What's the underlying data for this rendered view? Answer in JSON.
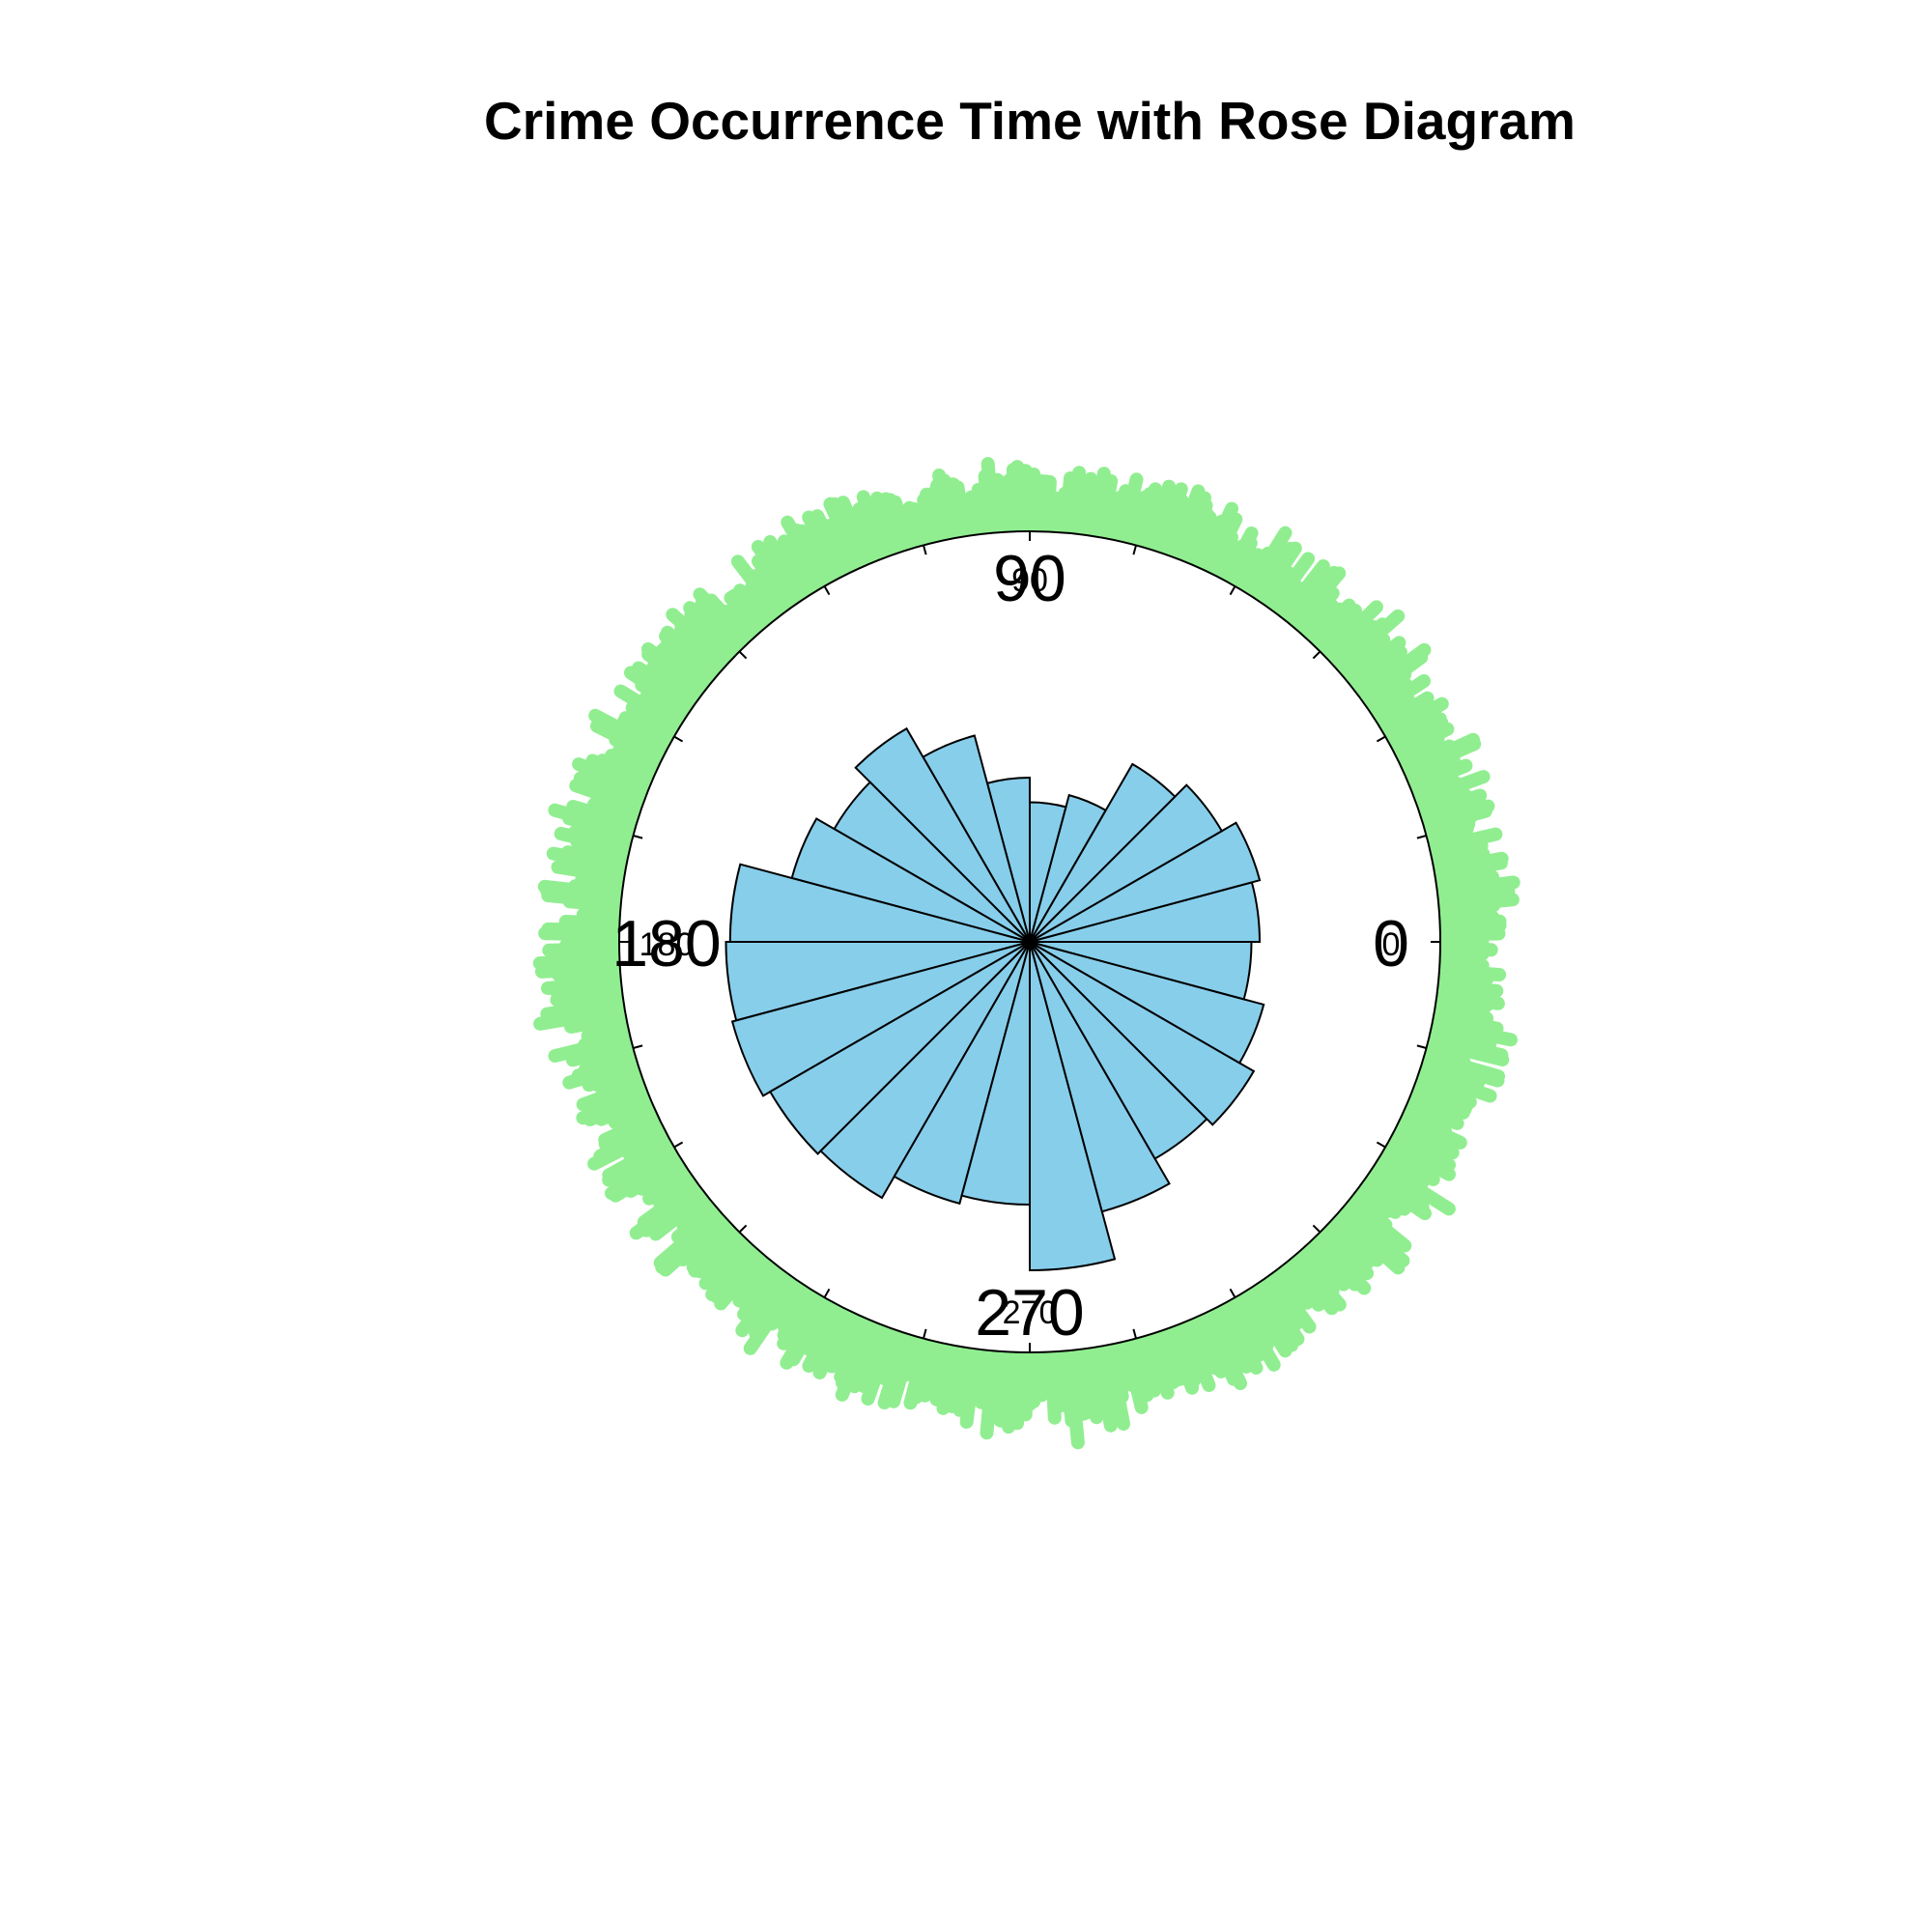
{
  "chart_data": {
    "type": "rose",
    "title": "Crime Occurrence Time with Rose Diagram",
    "angle_unit": "degrees",
    "angle_labels": [
      "0",
      "90",
      "180",
      "270"
    ],
    "angle_labels_small": [
      "0",
      "90",
      "180",
      "270"
    ],
    "tick_angles": [
      0,
      15,
      30,
      45,
      60,
      75,
      90,
      105,
      120,
      135,
      150,
      165,
      180,
      195,
      210,
      225,
      240,
      255,
      270,
      285,
      300,
      315,
      330,
      345
    ],
    "bins": {
      "start_angles": [
        0,
        15,
        30,
        45,
        60,
        75,
        90,
        105,
        120,
        135,
        150,
        165,
        180,
        195,
        210,
        225,
        240,
        255,
        270,
        285,
        300,
        315,
        330,
        345
      ],
      "width": 15,
      "relative_radius": [
        0.56,
        0.58,
        0.54,
        0.5,
        0.37,
        0.34,
        0.4,
        0.52,
        0.6,
        0.55,
        0.6,
        0.73,
        0.74,
        0.75,
        0.73,
        0.72,
        0.66,
        0.64,
        0.8,
        0.68,
        0.61,
        0.63,
        0.59,
        0.54
      ]
    },
    "raw_points": {
      "note_free": true,
      "count_per_degree_weight": [
        1.0
      ]
    },
    "colors": {
      "petal_fill": "#87ceeb",
      "petal_stroke": "#000000",
      "points": "#90ee90",
      "circle": "#000000",
      "background": "#ffffff"
    }
  }
}
